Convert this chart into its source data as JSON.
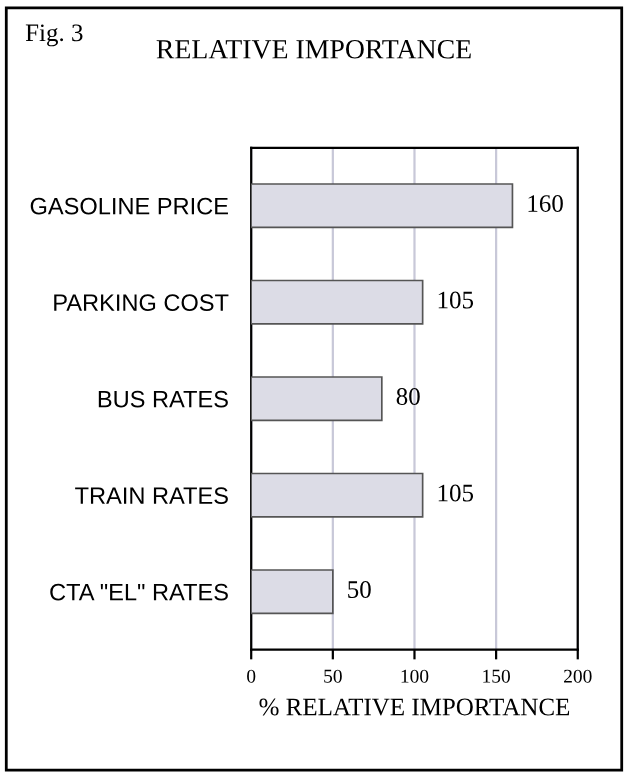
{
  "chart_data": {
    "type": "bar",
    "orientation": "horizontal",
    "title": "RELATIVE IMPORTANCE",
    "xlabel": "% RELATIVE IMPORTANCE",
    "annotations": [
      "Fig. 3"
    ],
    "categories": [
      "GASOLINE PRICE",
      "PARKING COST",
      "BUS RATES",
      "TRAIN RATES",
      "CTA \"EL\" RATES"
    ],
    "values": [
      160,
      105,
      80,
      105,
      50
    ],
    "color": "#dcdce6",
    "data_labels": true,
    "xlim": [
      0,
      200
    ],
    "xticks": [
      0,
      50,
      100,
      150,
      200
    ],
    "grid": "x"
  }
}
